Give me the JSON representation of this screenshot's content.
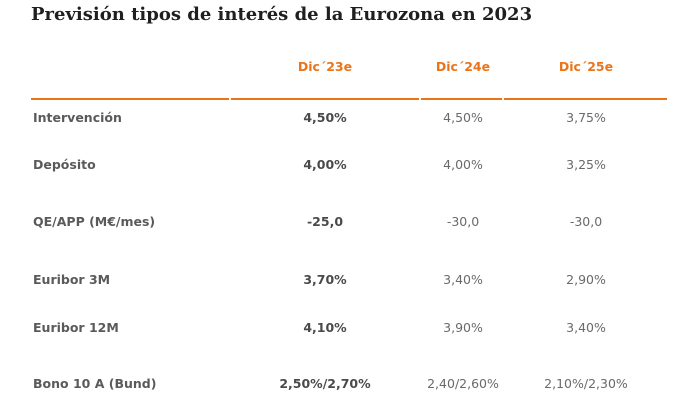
{
  "title": "Previsión tipos de interés de la Eurozona en 2023",
  "headers": [
    "Dic´23e",
    "Dic´24e",
    "Dic´25e"
  ],
  "rows": [
    {
      "label": "Intervención",
      "values": [
        "4,50%",
        "4,50%",
        "3,75%"
      ]
    },
    {
      "label": "Depósito",
      "values": [
        "4,00%",
        "4,00%",
        "3,25%"
      ]
    },
    {
      "label": "QE/APP (M€/mes)",
      "values": [
        "-25,0",
        "-30,0",
        "-30,0"
      ]
    },
    {
      "label": "Euribor 3M",
      "values": [
        "3,70%",
        "3,40%",
        "2,90%"
      ]
    },
    {
      "label": "Euribor 12M",
      "values": [
        "4,10%",
        "3,90%",
        "3,40%"
      ]
    },
    {
      "label": "Bono 10 A (Bund)",
      "values": [
        "2,50%/2,70%",
        "2,40/2,60%",
        "2,10%/2,30%"
      ]
    }
  ],
  "accent_color": "#ec7418"
}
